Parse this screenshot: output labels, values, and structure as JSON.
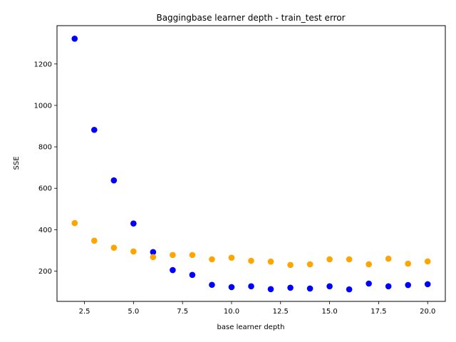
{
  "chart_data": {
    "type": "scatter",
    "title": "Baggingbase learner depth - train_test error",
    "xlabel": "base learner depth",
    "ylabel": "SSE",
    "xlim": [
      1.1,
      20.9
    ],
    "ylim": [
      54,
      1385
    ],
    "xticks": [
      2.5,
      5.0,
      7.5,
      10.0,
      12.5,
      15.0,
      17.5,
      20.0
    ],
    "xtick_labels": [
      "2.5",
      "5.0",
      "7.5",
      "10.0",
      "12.5",
      "15.0",
      "17.5",
      "20.0"
    ],
    "yticks": [
      200,
      400,
      600,
      800,
      1000,
      1200
    ],
    "ytick_labels": [
      "200",
      "400",
      "600",
      "800",
      "1000",
      "1200"
    ],
    "grid": false,
    "x": [
      2,
      3,
      4,
      5,
      6,
      7,
      8,
      9,
      10,
      11,
      12,
      13,
      14,
      15,
      16,
      17,
      18,
      19,
      20
    ],
    "series": [
      {
        "color": "#0000ff",
        "values": [
          1322,
          882,
          638,
          430,
          292,
          205,
          182,
          134,
          123,
          127,
          113,
          120,
          116,
          127,
          112,
          140,
          127,
          133,
          137
        ]
      },
      {
        "color": "#ffa500",
        "values": [
          432,
          347,
          313,
          295,
          268,
          278,
          278,
          257,
          265,
          250,
          246,
          230,
          233,
          257,
          257,
          233,
          260,
          236,
          247
        ]
      }
    ]
  }
}
